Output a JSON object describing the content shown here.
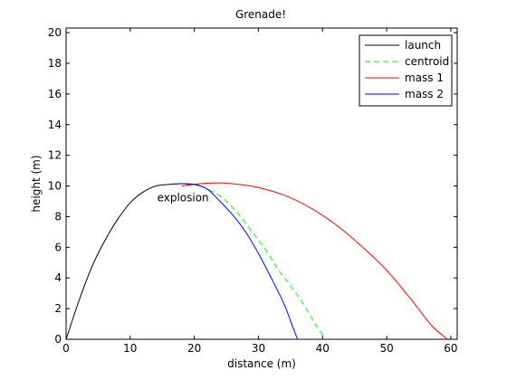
{
  "chart_data": {
    "type": "line",
    "title": "Grenade!",
    "xlabel": "distance (m)",
    "ylabel": "height (m)",
    "xlim": [
      0,
      61
    ],
    "ylim": [
      0,
      20.3
    ],
    "xticks": [
      0,
      10,
      20,
      30,
      40,
      50,
      60
    ],
    "yticks": [
      0,
      2,
      4,
      6,
      8,
      10,
      12,
      14,
      16,
      18,
      20
    ],
    "grid": false,
    "legend_position": "top-right",
    "annotations": [
      {
        "text": "explosion",
        "x": 14.2,
        "y": 9.0
      }
    ],
    "series": [
      {
        "name": "launch",
        "color": "#000000",
        "dash": "solid",
        "x": [
          0,
          2,
          4,
          6,
          8,
          10,
          12,
          14,
          16,
          18,
          20,
          21
        ],
        "y": [
          0,
          2.5,
          4.7,
          6.4,
          7.8,
          8.9,
          9.6,
          10.0,
          10.1,
          10.15,
          10.1,
          10.0
        ]
      },
      {
        "name": "centroid",
        "color": "#00ff00",
        "dash": "dashed",
        "x": [
          21,
          23,
          25,
          27,
          29,
          31,
          33,
          35,
          37,
          39,
          40.5
        ],
        "y": [
          10.0,
          9.6,
          9.0,
          8.1,
          7.0,
          5.9,
          4.6,
          3.5,
          2.3,
          0.9,
          0
        ]
      },
      {
        "name": "mass 1",
        "color": "#ff0000",
        "dash": "solid",
        "x": [
          18,
          21,
          24,
          27,
          30,
          34,
          38,
          42,
          46,
          50,
          54,
          57,
          59.5
        ],
        "y": [
          10.0,
          10.15,
          10.2,
          10.1,
          9.9,
          9.4,
          8.6,
          7.5,
          6.1,
          4.5,
          2.5,
          0.9,
          0
        ]
      },
      {
        "name": "mass 2",
        "color": "#0000ff",
        "dash": "solid",
        "x": [
          18,
          20,
          22,
          24,
          26,
          28,
          30,
          32,
          34,
          35,
          36.1
        ],
        "y": [
          10.15,
          10.1,
          9.8,
          9.0,
          8.1,
          7.0,
          5.6,
          4.0,
          2.3,
          1.2,
          0
        ]
      }
    ]
  }
}
